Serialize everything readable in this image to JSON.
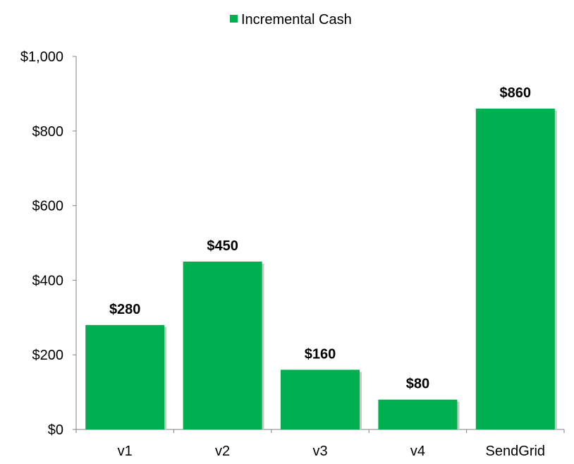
{
  "chart_data": {
    "type": "bar",
    "categories": [
      "v1",
      "v2",
      "v3",
      "v4",
      "SendGrid"
    ],
    "series": [
      {
        "name": "Incremental Cash",
        "values": [
          280,
          450,
          160,
          80,
          860
        ]
      }
    ],
    "data_labels": [
      "$280",
      "$450",
      "$160",
      "$80",
      "$860"
    ],
    "y_ticks": [
      0,
      200,
      400,
      600,
      800,
      1000
    ],
    "y_tick_labels": [
      "$0",
      "$200",
      "$400",
      "$600",
      "$800",
      "$1,000"
    ],
    "ylim": [
      0,
      1000
    ],
    "grid": false,
    "legend_position": "top-center",
    "title": "",
    "xlabel": "",
    "ylabel": "",
    "colors": {
      "bar": "#00b050",
      "axis": "#808080",
      "shadow": "#c8c8c8"
    }
  }
}
